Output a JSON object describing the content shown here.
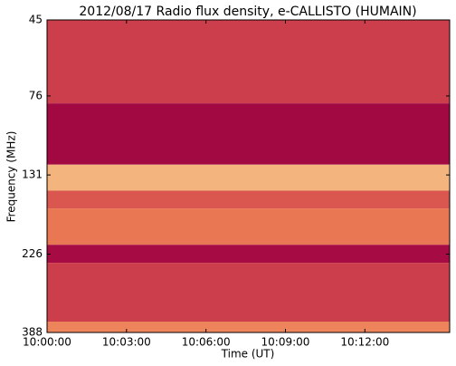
{
  "chart_data": {
    "type": "spectrogram",
    "title": "2012/08/17  Radio flux density, e-CALLISTO (HUMAIN)",
    "x_label": "Time (UT)",
    "y_label": "Frequency (MHz)",
    "xlim": [
      0,
      15.2
    ],
    "xticks": [
      {
        "value": 0,
        "label": "10:00:00"
      },
      {
        "value": 3,
        "label": "10:03:00"
      },
      {
        "value": 6,
        "label": "10:06:00"
      },
      {
        "value": 9,
        "label": "10:09:00"
      },
      {
        "value": 12,
        "label": "10:12:00"
      }
    ],
    "ylim": [
      45,
      388
    ],
    "yticks": [
      45,
      76,
      131,
      226,
      388
    ],
    "y_log": true,
    "y_inverted": true,
    "bins": [
      45,
      80,
      122,
      146,
      165,
      212,
      240,
      360,
      388
    ],
    "intensity": [
      0.38,
      0.05,
      0.85,
      0.5,
      0.65,
      0.08,
      0.38,
      0.7
    ],
    "colormap": [
      "#9b0041",
      "#c8344a",
      "#ec7a55",
      "#fbe3a0"
    ]
  }
}
